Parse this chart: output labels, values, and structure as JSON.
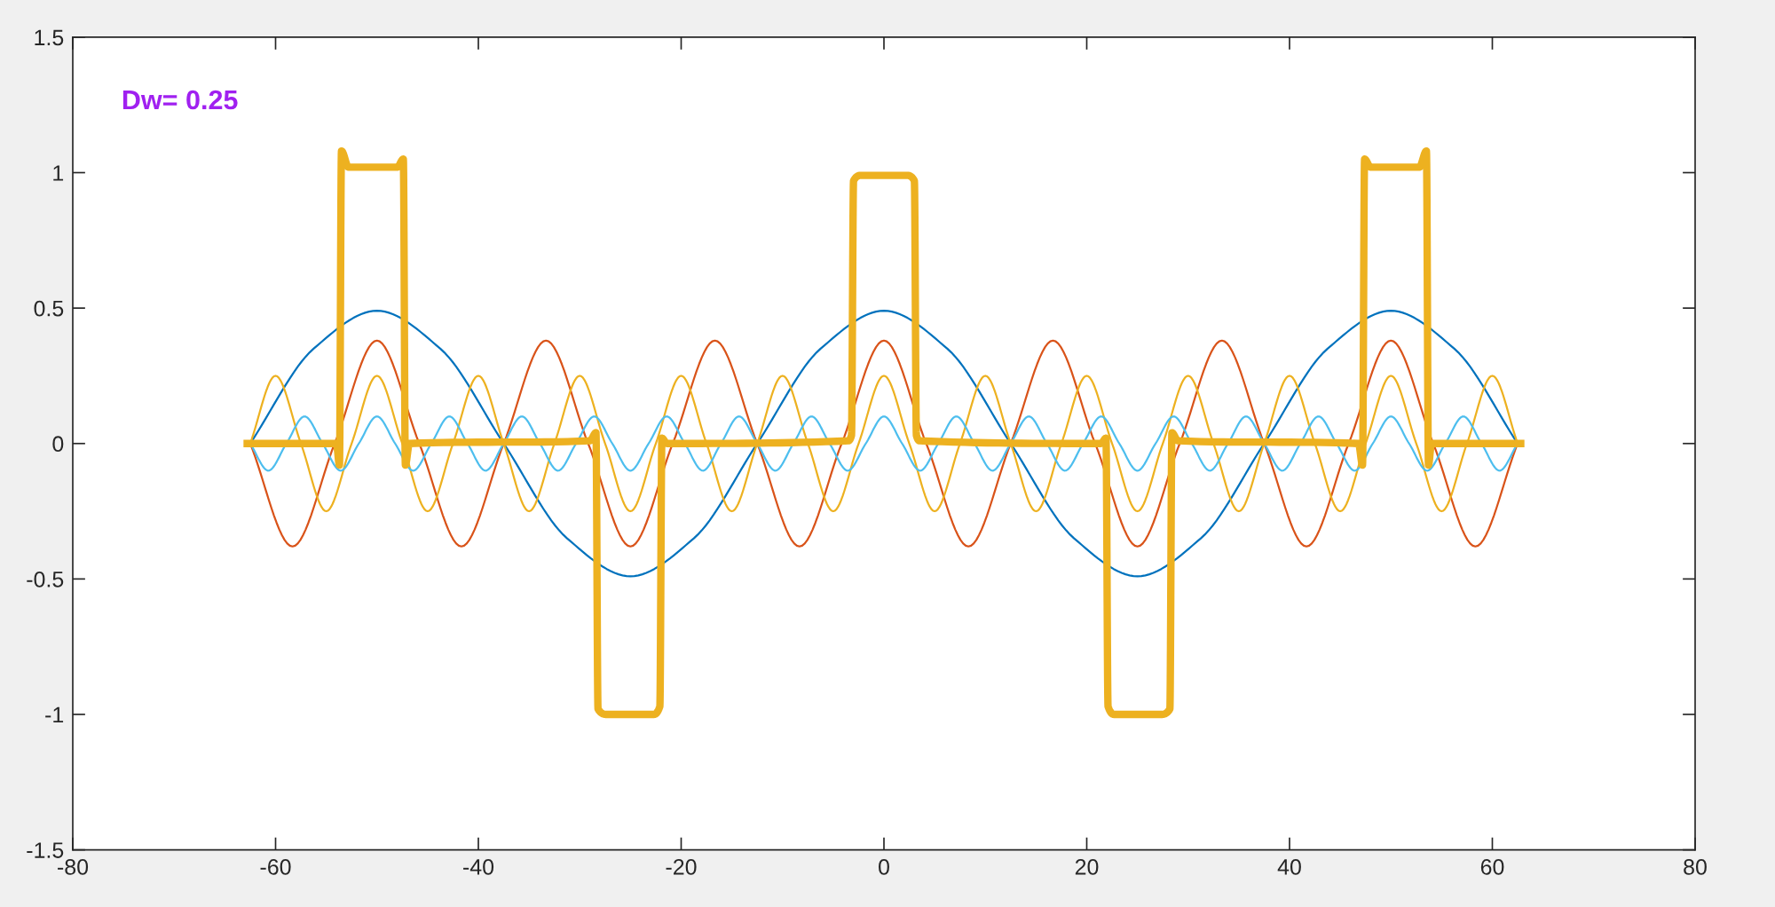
{
  "chart_data": {
    "type": "line",
    "annotations": [
      "Dw= 0.25"
    ],
    "xlim": [
      -80,
      80
    ],
    "xticks": [
      -80,
      -60,
      -40,
      -20,
      0,
      20,
      40,
      60,
      80
    ],
    "ylim": [
      -1.5,
      1.5
    ],
    "yticks": [
      -1.5,
      -1,
      -0.5,
      0,
      0.5,
      1,
      1.5
    ],
    "grid": false,
    "marker": "none",
    "line_style": "solid",
    "series": [
      {
        "color": "#0072bd",
        "x": [
          -62.5,
          -56.25,
          -50,
          -43.75,
          -37.5,
          -31.25,
          -25,
          -18.75,
          -12.5,
          -6.25,
          0,
          6.25,
          12.5,
          18.75,
          25,
          31.25,
          37.5,
          43.75,
          50,
          56.25,
          62.5
        ],
        "values": [
          0,
          0.35,
          0.49,
          0.35,
          0,
          -0.35,
          -0.49,
          -0.35,
          0,
          0.35,
          0.49,
          0.35,
          0,
          -0.35,
          -0.49,
          -0.35,
          0,
          0.35,
          0.49,
          0.35,
          0
        ]
      },
      {
        "color": "#d95319",
        "x": [
          -62.5,
          -58.33,
          -54.17,
          -50,
          -45.83,
          -41.67,
          -37.5,
          -33.33,
          -29.17,
          -25,
          -20.83,
          -16.67,
          -12.5,
          -8.33,
          -4.17,
          0,
          4.17,
          8.33,
          12.5,
          16.67,
          20.83,
          25,
          29.17,
          33.33,
          37.5,
          41.67,
          45.83,
          50,
          54.17,
          58.33,
          62.5
        ],
        "values": [
          0,
          -0.38,
          0,
          0.38,
          0,
          -0.38,
          0,
          0.38,
          0,
          -0.38,
          0,
          0.38,
          0,
          -0.38,
          0,
          0.38,
          0,
          -0.38,
          0,
          0.38,
          0,
          -0.38,
          0,
          0.38,
          0,
          -0.38,
          0,
          0.38,
          0,
          -0.38,
          0
        ]
      },
      {
        "color": "#edb120",
        "x": [
          -62.5,
          -60,
          -57.5,
          -55,
          -52.5,
          -50,
          -47.5,
          -45,
          -42.5,
          -40,
          -37.5,
          -35,
          -32.5,
          -30,
          -27.5,
          -25,
          -22.5,
          -20,
          -17.5,
          -15,
          -12.5,
          -10,
          -7.5,
          -5,
          -2.5,
          0,
          2.5,
          5,
          7.5,
          10,
          12.5,
          15,
          17.5,
          20,
          22.5,
          25,
          27.5,
          30,
          32.5,
          35,
          37.5,
          40,
          42.5,
          45,
          47.5,
          50,
          52.5,
          55,
          57.5,
          60,
          62.5
        ],
        "values": [
          0,
          0.25,
          0,
          -0.25,
          0,
          0.25,
          0,
          -0.25,
          0,
          0.25,
          0,
          -0.25,
          0,
          0.25,
          0,
          -0.25,
          0,
          0.25,
          0,
          -0.25,
          0,
          0.25,
          0,
          -0.25,
          0,
          0.25,
          0,
          -0.25,
          0,
          0.25,
          0,
          -0.25,
          0,
          0.25,
          0,
          -0.25,
          0,
          0.25,
          0,
          -0.25,
          0,
          0.25,
          0,
          -0.25,
          0,
          0.25,
          0,
          -0.25,
          0,
          0.25,
          0
        ]
      },
      {
        "color": "#4dbeee",
        "x": [
          -62.5,
          -60.71,
          -58.93,
          -57.14,
          -55.36,
          -53.57,
          -51.79,
          -50,
          -48.21,
          -46.43,
          -44.64,
          -42.86,
          -41.07,
          -39.29,
          -37.5,
          -35.71,
          -33.93,
          -32.14,
          -30.36,
          -28.57,
          -26.79,
          -25,
          -23.21,
          -21.43,
          -19.64,
          -17.86,
          -16.07,
          -14.29,
          -12.5,
          -10.71,
          -8.93,
          -7.14,
          -5.36,
          -3.57,
          -1.79,
          0,
          1.79,
          3.57,
          5.36,
          7.14,
          8.93,
          10.71,
          12.5,
          14.29,
          16.07,
          17.86,
          19.64,
          21.43,
          23.21,
          25,
          26.79,
          28.57,
          30.36,
          32.14,
          33.93,
          35.71,
          37.5,
          39.29,
          41.07,
          42.86,
          44.64,
          46.43,
          48.21,
          50,
          51.79,
          53.57,
          55.36,
          57.14,
          58.93,
          60.71,
          62.5
        ],
        "values": [
          0,
          -0.1,
          0,
          0.1,
          0,
          -0.1,
          0,
          0.1,
          0,
          -0.1,
          0,
          0.1,
          0,
          -0.1,
          0,
          0.1,
          0,
          -0.1,
          0,
          0.1,
          0,
          -0.1,
          0,
          0.1,
          0,
          -0.1,
          0,
          0.1,
          0,
          -0.1,
          0,
          0.1,
          0,
          -0.1,
          0,
          0.1,
          0,
          -0.1,
          0,
          0.1,
          0,
          -0.1,
          0,
          0.1,
          0,
          -0.1,
          0,
          0.1,
          0,
          -0.1,
          0,
          0.1,
          0,
          -0.1,
          0,
          0.1,
          0,
          -0.1,
          0,
          0.1,
          0,
          -0.1,
          0,
          0.1,
          0,
          -0.1,
          0,
          0.1,
          0,
          -0.1,
          0
        ]
      },
      {
        "color": "#edb120",
        "x": [
          -62.8,
          -54,
          -53.7,
          -53.5,
          -52.8,
          -48,
          -47.4,
          -47.2,
          -46.8,
          -29,
          -28.4,
          -28.2,
          -27.4,
          -22.7,
          -22.1,
          -21.9,
          -21.4,
          -3.5,
          -3.2,
          -3.0,
          -2.3,
          2.3,
          3.0,
          3.2,
          3.5,
          21.4,
          21.9,
          22.1,
          22.7,
          27.4,
          28.2,
          28.4,
          29,
          46.8,
          47.2,
          47.4,
          48,
          52.8,
          53.5,
          53.7,
          54,
          62.8
        ],
        "values": [
          0,
          0,
          -0.08,
          1.08,
          1.02,
          1.02,
          1.05,
          -0.08,
          0,
          0.01,
          0.04,
          -0.98,
          -1.0,
          -1.0,
          -0.97,
          0.02,
          0,
          0.01,
          0.03,
          0.97,
          0.99,
          0.99,
          0.97,
          0.03,
          0.01,
          0,
          0.02,
          -0.97,
          -1.0,
          -1.0,
          -0.98,
          0.04,
          0.01,
          0,
          -0.08,
          1.05,
          1.02,
          1.02,
          1.08,
          -0.08,
          0,
          0
        ]
      }
    ]
  }
}
